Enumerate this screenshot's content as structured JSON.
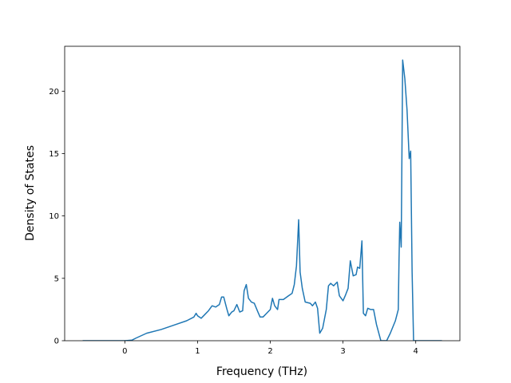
{
  "chart_data": {
    "type": "line",
    "x_label": "Frequency (THz)",
    "y_label": "Density of States",
    "color": "#1f77b4",
    "x": [
      -0.58,
      0,
      0.1,
      0.15,
      0.3,
      0.5,
      0.7,
      0.85,
      0.95,
      0.98,
      1.0,
      1.05,
      1.1,
      1.15,
      1.2,
      1.25,
      1.3,
      1.33,
      1.36,
      1.4,
      1.43,
      1.47,
      1.5,
      1.54,
      1.58,
      1.62,
      1.64,
      1.67,
      1.7,
      1.74,
      1.78,
      1.83,
      1.86,
      1.9,
      1.95,
      2.0,
      2.03,
      2.06,
      2.1,
      2.12,
      2.18,
      2.25,
      2.3,
      2.33,
      2.36,
      2.39,
      2.41,
      2.44,
      2.48,
      2.55,
      2.58,
      2.62,
      2.65,
      2.68,
      2.72,
      2.77,
      2.8,
      2.83,
      2.87,
      2.92,
      2.95,
      3.0,
      3.03,
      3.07,
      3.1,
      3.14,
      3.18,
      3.2,
      3.23,
      3.26,
      3.28,
      3.31,
      3.34,
      3.38,
      3.42,
      3.46,
      3.52,
      3.6,
      3.65,
      3.72,
      3.76,
      3.77,
      3.78,
      3.8,
      3.82,
      3.85,
      3.88,
      3.91,
      3.93,
      3.95,
      3.97,
      4.36
    ],
    "values": [
      0,
      0,
      0.05,
      0.2,
      0.6,
      0.9,
      1.3,
      1.6,
      1.9,
      2.2,
      2.0,
      1.8,
      2.1,
      2.4,
      2.8,
      2.7,
      2.9,
      3.5,
      3.5,
      2.6,
      2.0,
      2.3,
      2.4,
      2.9,
      2.3,
      2.4,
      4.0,
      4.5,
      3.4,
      3.1,
      3.0,
      2.3,
      1.9,
      1.9,
      2.2,
      2.5,
      3.4,
      2.8,
      2.5,
      3.3,
      3.3,
      3.6,
      3.8,
      4.5,
      6.0,
      9.7,
      5.5,
      4.2,
      3.1,
      3.0,
      2.8,
      3.1,
      2.6,
      0.6,
      1.0,
      2.5,
      4.4,
      4.6,
      4.4,
      4.7,
      3.6,
      3.2,
      3.6,
      4.2,
      6.4,
      5.2,
      5.3,
      5.9,
      5.8,
      8.0,
      2.2,
      2.0,
      2.6,
      2.5,
      2.5,
      1.3,
      0,
      0,
      0.6,
      1.6,
      2.5,
      6.5,
      9.5,
      7.5,
      22.5,
      21,
      18.5,
      14.6,
      15.2,
      5.5,
      0,
      0
    ],
    "xlim": [
      -0.827,
      4.607
    ],
    "xticks": [
      0,
      1,
      2,
      3,
      4
    ],
    "ylim": [
      0,
      23.6
    ],
    "yticks": [
      0,
      5,
      10,
      15,
      20
    ]
  }
}
